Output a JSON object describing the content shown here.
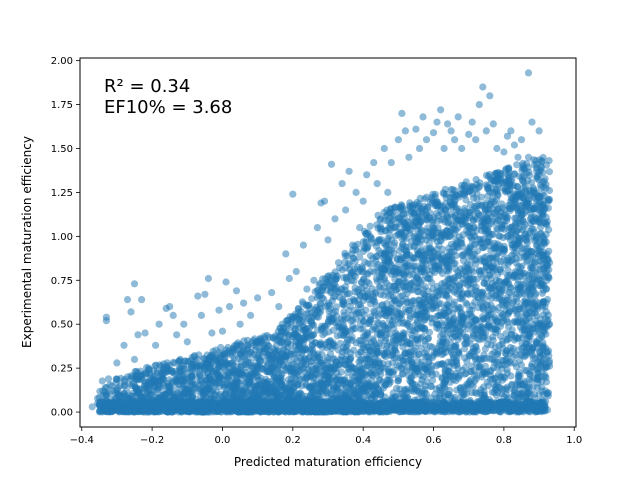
{
  "chart_data": {
    "type": "scatter",
    "title": "",
    "xlabel": "Predicted maturation efficiency",
    "ylabel": "Experimental maturation efficiency",
    "xlim": [
      -0.405,
      1.005
    ],
    "ylim": [
      -0.085,
      2.015
    ],
    "xticks": [
      -0.4,
      -0.2,
      0.0,
      0.2,
      0.4,
      0.6,
      0.8,
      1.0
    ],
    "xtick_labels": [
      "−0.4",
      "−0.2",
      "0.0",
      "0.2",
      "0.4",
      "0.6",
      "0.8",
      "1.0"
    ],
    "yticks": [
      0.0,
      0.25,
      0.5,
      0.75,
      1.0,
      1.25,
      1.5,
      1.75,
      2.0
    ],
    "ytick_labels": [
      "0.00",
      "0.25",
      "0.50",
      "0.75",
      "1.00",
      "1.25",
      "1.50",
      "1.75",
      "2.00"
    ],
    "annotations": [
      "R² = 0.34",
      "EF10% = 3.68"
    ],
    "grid": false,
    "legend": "none",
    "marker_color": "#1f77b4",
    "marker_alpha": 0.5,
    "series": [
      {
        "points": [
          [
            -0.37,
            0.03
          ],
          [
            -0.35,
            0.04
          ],
          [
            -0.34,
            0.12
          ],
          [
            -0.33,
            0.54
          ],
          [
            -0.33,
            0.52
          ],
          [
            -0.32,
            0.05
          ],
          [
            -0.31,
            0.02
          ],
          [
            -0.3,
            0.28
          ],
          [
            -0.29,
            0.15
          ],
          [
            -0.28,
            0.38
          ],
          [
            -0.27,
            0.64
          ],
          [
            -0.27,
            0.2
          ],
          [
            -0.26,
            0.57
          ],
          [
            -0.25,
            0.73
          ],
          [
            -0.25,
            0.3
          ],
          [
            -0.24,
            0.44
          ],
          [
            -0.23,
            0.64
          ],
          [
            -0.22,
            0.45
          ],
          [
            -0.21,
            0.25
          ],
          [
            -0.2,
            0.1
          ],
          [
            -0.19,
            0.38
          ],
          [
            -0.18,
            0.5
          ],
          [
            -0.17,
            0.2
          ],
          [
            -0.16,
            0.59
          ],
          [
            -0.15,
            0.6
          ],
          [
            -0.14,
            0.55
          ],
          [
            -0.13,
            0.44
          ],
          [
            -0.12,
            0.3
          ],
          [
            -0.11,
            0.5
          ],
          [
            -0.1,
            0.4
          ],
          [
            -0.09,
            0.2
          ],
          [
            -0.07,
            0.66
          ],
          [
            -0.06,
            0.55
          ],
          [
            -0.05,
            0.67
          ],
          [
            -0.04,
            0.76
          ],
          [
            -0.03,
            0.45
          ],
          [
            -0.02,
            0.3
          ],
          [
            -0.01,
            0.58
          ],
          [
            0.0,
            0.46
          ],
          [
            0.01,
            0.74
          ],
          [
            0.02,
            0.6
          ],
          [
            0.03,
            0.36
          ],
          [
            0.04,
            0.69
          ],
          [
            0.05,
            0.5
          ],
          [
            0.06,
            0.62
          ],
          [
            0.08,
            0.55
          ],
          [
            0.1,
            0.65
          ],
          [
            0.12,
            0.42
          ],
          [
            0.14,
            0.68
          ],
          [
            0.16,
            0.6
          ],
          [
            0.17,
            0.5
          ],
          [
            0.18,
            0.9
          ],
          [
            0.19,
            0.76
          ],
          [
            0.2,
            1.24
          ],
          [
            0.21,
            0.8
          ],
          [
            0.22,
            0.55
          ],
          [
            0.23,
            0.95
          ],
          [
            0.24,
            0.7
          ],
          [
            0.26,
            0.75
          ],
          [
            0.27,
            1.05
          ],
          [
            0.28,
            1.19
          ],
          [
            0.29,
            1.2
          ],
          [
            0.3,
            0.98
          ],
          [
            0.31,
            1.41
          ],
          [
            0.32,
            1.1
          ],
          [
            0.33,
            0.85
          ],
          [
            0.34,
            1.3
          ],
          [
            0.35,
            1.15
          ],
          [
            0.36,
            1.37
          ],
          [
            0.37,
            0.95
          ],
          [
            0.38,
            1.25
          ],
          [
            0.39,
            1.05
          ],
          [
            0.4,
            1.2
          ],
          [
            0.41,
            1.35
          ],
          [
            0.42,
            1.0
          ],
          [
            0.43,
            1.42
          ],
          [
            0.44,
            1.3
          ],
          [
            0.45,
            1.1
          ],
          [
            0.46,
            1.5
          ],
          [
            0.47,
            1.25
          ],
          [
            0.48,
            1.42
          ],
          [
            0.5,
            1.55
          ],
          [
            0.51,
            1.7
          ],
          [
            0.52,
            1.6
          ],
          [
            0.53,
            1.45
          ],
          [
            0.55,
            1.61
          ],
          [
            0.56,
            1.5
          ],
          [
            0.57,
            1.68
          ],
          [
            0.58,
            1.55
          ],
          [
            0.6,
            1.59
          ],
          [
            0.61,
            1.65
          ],
          [
            0.62,
            1.72
          ],
          [
            0.63,
            1.5
          ],
          [
            0.64,
            1.64
          ],
          [
            0.65,
            1.6
          ],
          [
            0.66,
            1.55
          ],
          [
            0.67,
            1.68
          ],
          [
            0.68,
            1.5
          ],
          [
            0.7,
            1.58
          ],
          [
            0.71,
            1.65
          ],
          [
            0.72,
            1.55
          ],
          [
            0.73,
            1.75
          ],
          [
            0.74,
            1.85
          ],
          [
            0.75,
            1.6
          ],
          [
            0.76,
            1.8
          ],
          [
            0.77,
            1.64
          ],
          [
            0.78,
            1.5
          ],
          [
            0.8,
            1.48
          ],
          [
            0.81,
            1.57
          ],
          [
            0.82,
            1.6
          ],
          [
            0.83,
            1.52
          ],
          [
            0.84,
            1.45
          ],
          [
            0.85,
            1.55
          ],
          [
            0.87,
            1.93
          ],
          [
            0.87,
            1.45
          ],
          [
            0.88,
            1.65
          ],
          [
            0.9,
            1.6
          ],
          [
            0.91,
            1.0
          ],
          [
            0.92,
            0.7
          ],
          [
            0.93,
            0.5
          ],
          [
            0.93,
            0.85
          ],
          [
            0.92,
            0.3
          ],
          [
            0.9,
            0.1
          ],
          [
            0.88,
            0.05
          ],
          [
            0.85,
            0.02
          ],
          [
            0.8,
            0.03
          ],
          [
            0.7,
            0.02
          ],
          [
            0.6,
            0.03
          ],
          [
            0.5,
            0.02
          ],
          [
            0.4,
            0.03
          ],
          [
            0.3,
            0.02
          ],
          [
            0.2,
            0.03
          ],
          [
            0.1,
            0.02
          ],
          [
            0.0,
            0.03
          ],
          [
            -0.1,
            0.02
          ],
          [
            -0.2,
            0.03
          ],
          [
            -0.3,
            0.02
          ]
        ]
      }
    ]
  }
}
